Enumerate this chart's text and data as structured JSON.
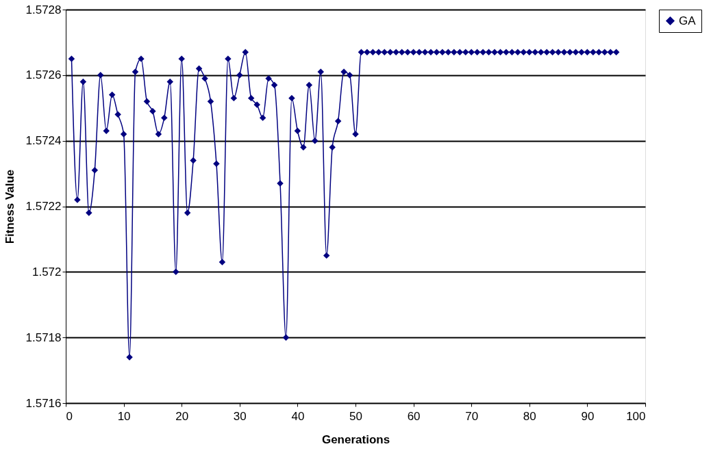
{
  "chart_data": {
    "type": "line",
    "xlabel": "Generations",
    "ylabel": "Fitness Value",
    "x": [
      1,
      2,
      3,
      4,
      5,
      6,
      7,
      8,
      9,
      10,
      11,
      12,
      13,
      14,
      15,
      16,
      17,
      18,
      19,
      20,
      21,
      22,
      23,
      24,
      25,
      26,
      27,
      28,
      29,
      30,
      31,
      32,
      33,
      34,
      35,
      36,
      37,
      38,
      39,
      40,
      41,
      42,
      43,
      44,
      45,
      46,
      47,
      48,
      49,
      50,
      51,
      52,
      53,
      54,
      55,
      56,
      57,
      58,
      59,
      60,
      61,
      62,
      63,
      64,
      65,
      66,
      67,
      68,
      69,
      70,
      71,
      72,
      73,
      74,
      75,
      76,
      77,
      78,
      79,
      80,
      81,
      82,
      83,
      84,
      85,
      86,
      87,
      88,
      89,
      90,
      91,
      92,
      93,
      94,
      95
    ],
    "series": [
      {
        "name": "GA",
        "color": "#000080",
        "values": [
          1.57265,
          1.57222,
          1.57258,
          1.57218,
          1.57231,
          1.5726,
          1.57243,
          1.57254,
          1.57248,
          1.57242,
          1.57174,
          1.57261,
          1.57265,
          1.57252,
          1.57249,
          1.57242,
          1.57247,
          1.57258,
          1.572,
          1.57265,
          1.57218,
          1.57234,
          1.57262,
          1.57259,
          1.57252,
          1.57233,
          1.57203,
          1.57265,
          1.57253,
          1.5726,
          1.57267,
          1.57253,
          1.57251,
          1.57247,
          1.57259,
          1.57257,
          1.57227,
          1.5718,
          1.57253,
          1.57243,
          1.57238,
          1.57257,
          1.5724,
          1.57261,
          1.57205,
          1.57238,
          1.57246,
          1.57261,
          1.5726,
          1.57242,
          1.57267,
          1.57267,
          1.57267,
          1.57267,
          1.57267,
          1.57267,
          1.57267,
          1.57267,
          1.57267,
          1.57267,
          1.57267,
          1.57267,
          1.57267,
          1.57267,
          1.57267,
          1.57267,
          1.57267,
          1.57267,
          1.57267,
          1.57267,
          1.57267,
          1.57267,
          1.57267,
          1.57267,
          1.57267,
          1.57267,
          1.57267,
          1.57267,
          1.57267,
          1.57267,
          1.57267,
          1.57267,
          1.57267,
          1.57267,
          1.57267,
          1.57267,
          1.57267,
          1.57267,
          1.57267,
          1.57267,
          1.57267,
          1.57267,
          1.57267,
          1.57267,
          1.57267
        ]
      }
    ],
    "xlim": [
      0,
      100
    ],
    "xticks": [
      0,
      10,
      20,
      30,
      40,
      50,
      60,
      70,
      80,
      90,
      100
    ],
    "ylim": [
      1.5716,
      1.5728
    ],
    "yticks": [
      1.5716,
      1.5718,
      1.572,
      1.5722,
      1.5724,
      1.5726,
      1.5728
    ],
    "grid": "y",
    "legend": "right",
    "marker": "diamond",
    "line_style": "solid"
  }
}
